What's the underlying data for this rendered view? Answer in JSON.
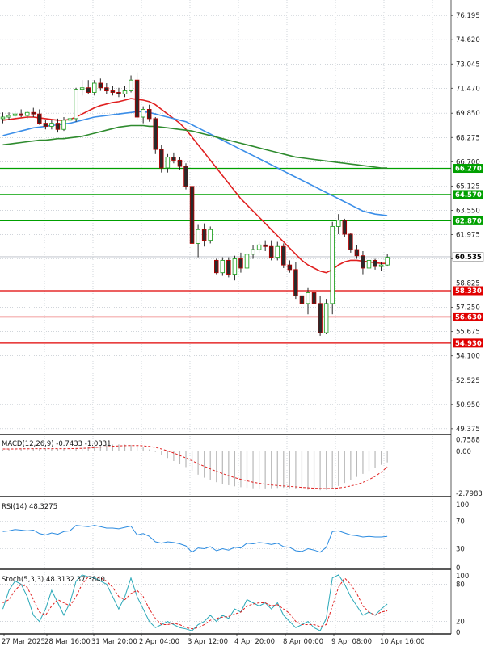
{
  "chart_data": {
    "type": "candlestick",
    "price_axis": {
      "ticks": [
        76.195,
        74.62,
        73.045,
        71.47,
        69.85,
        68.275,
        66.7,
        65.125,
        63.55,
        61.975,
        60.4,
        58.825,
        57.25,
        55.675,
        54.1,
        52.525,
        50.95,
        49.375
      ],
      "tick_labels": [
        "76.195",
        "74.620",
        "73.045",
        "71.470",
        "69.850",
        "68.275",
        "66.700",
        "65.125",
        "63.550",
        "61.975",
        "60.400",
        "58.825",
        "57.250",
        "55.675",
        "54.100",
        "52.525",
        "50.950",
        "49.375"
      ],
      "range": [
        49.0,
        77.2
      ]
    },
    "x_axis": {
      "labels": [
        "27 Mar 2025",
        "28 Mar 16:00",
        "31 Mar 20:00",
        "2 Apr 04:00",
        "3 Apr 12:00",
        "4 Apr 20:00",
        "8 Apr 00:00",
        "9 Apr 08:00",
        "10 Apr 16:00"
      ]
    },
    "current_price": {
      "value": 60.535,
      "label": "60.535",
      "color": "#ffffff"
    },
    "levels": [
      {
        "value": 66.27,
        "label": "66.270",
        "color": "#00a000"
      },
      {
        "value": 64.57,
        "label": "64.570",
        "color": "#00a000"
      },
      {
        "value": 62.87,
        "label": "62.870",
        "color": "#00a000"
      },
      {
        "value": 58.33,
        "label": "58.330",
        "color": "#e00000"
      },
      {
        "value": 56.63,
        "label": "56.630",
        "color": "#e00000"
      },
      {
        "value": 54.93,
        "label": "54.930",
        "color": "#e00000"
      }
    ],
    "candles": [
      {
        "o": 69.5,
        "h": 69.9,
        "l": 69.2,
        "c": 69.6
      },
      {
        "o": 69.6,
        "h": 69.9,
        "l": 69.4,
        "c": 69.7
      },
      {
        "o": 69.7,
        "h": 70.0,
        "l": 69.5,
        "c": 69.8
      },
      {
        "o": 69.8,
        "h": 70.1,
        "l": 69.6,
        "c": 69.7
      },
      {
        "o": 69.7,
        "h": 70.0,
        "l": 69.5,
        "c": 69.9
      },
      {
        "o": 69.9,
        "h": 70.2,
        "l": 69.6,
        "c": 69.8
      },
      {
        "o": 69.8,
        "h": 70.1,
        "l": 69.1,
        "c": 69.2
      },
      {
        "o": 69.2,
        "h": 69.4,
        "l": 68.8,
        "c": 69.0
      },
      {
        "o": 69.0,
        "h": 69.4,
        "l": 68.8,
        "c": 69.2
      },
      {
        "o": 69.2,
        "h": 69.5,
        "l": 68.6,
        "c": 68.8
      },
      {
        "o": 68.8,
        "h": 69.6,
        "l": 68.7,
        "c": 69.4
      },
      {
        "o": 69.4,
        "h": 69.8,
        "l": 69.1,
        "c": 69.5
      },
      {
        "o": 69.5,
        "h": 71.5,
        "l": 69.3,
        "c": 71.4
      },
      {
        "o": 71.4,
        "h": 72.0,
        "l": 71.0,
        "c": 71.5
      },
      {
        "o": 71.5,
        "h": 72.0,
        "l": 71.1,
        "c": 71.2
      },
      {
        "o": 71.2,
        "h": 72.0,
        "l": 71.0,
        "c": 71.8
      },
      {
        "o": 71.8,
        "h": 72.1,
        "l": 71.3,
        "c": 71.5
      },
      {
        "o": 71.5,
        "h": 71.8,
        "l": 71.1,
        "c": 71.3
      },
      {
        "o": 71.3,
        "h": 71.6,
        "l": 71.0,
        "c": 71.2
      },
      {
        "o": 71.2,
        "h": 71.5,
        "l": 70.9,
        "c": 71.1
      },
      {
        "o": 71.1,
        "h": 71.6,
        "l": 70.9,
        "c": 71.3
      },
      {
        "o": 71.3,
        "h": 72.3,
        "l": 71.2,
        "c": 72.0
      },
      {
        "o": 72.0,
        "h": 72.5,
        "l": 69.4,
        "c": 69.6
      },
      {
        "o": 69.6,
        "h": 70.3,
        "l": 69.2,
        "c": 70.1
      },
      {
        "o": 70.1,
        "h": 70.4,
        "l": 69.3,
        "c": 69.5
      },
      {
        "o": 69.5,
        "h": 69.6,
        "l": 67.2,
        "c": 67.5
      },
      {
        "o": 67.5,
        "h": 67.8,
        "l": 66.0,
        "c": 66.3
      },
      {
        "o": 66.3,
        "h": 67.2,
        "l": 66.0,
        "c": 67.0
      },
      {
        "o": 67.0,
        "h": 67.3,
        "l": 66.6,
        "c": 66.8
      },
      {
        "o": 66.8,
        "h": 67.0,
        "l": 66.2,
        "c": 66.4
      },
      {
        "o": 66.4,
        "h": 66.6,
        "l": 64.9,
        "c": 65.1
      },
      {
        "o": 65.1,
        "h": 65.3,
        "l": 61.0,
        "c": 61.4
      },
      {
        "o": 61.4,
        "h": 62.6,
        "l": 60.5,
        "c": 62.3
      },
      {
        "o": 62.3,
        "h": 62.7,
        "l": 61.2,
        "c": 61.6
      },
      {
        "o": 61.6,
        "h": 62.5,
        "l": 61.4,
        "c": 62.3
      },
      {
        "o": 60.3,
        "h": 60.4,
        "l": 59.4,
        "c": 59.5
      },
      {
        "o": 59.5,
        "h": 60.5,
        "l": 59.3,
        "c": 60.3
      },
      {
        "o": 60.3,
        "h": 60.5,
        "l": 59.2,
        "c": 59.4
      },
      {
        "o": 59.4,
        "h": 60.6,
        "l": 59.0,
        "c": 60.4
      },
      {
        "o": 60.4,
        "h": 60.8,
        "l": 59.5,
        "c": 59.8
      },
      {
        "o": 59.8,
        "h": 63.5,
        "l": 59.7,
        "c": 60.7
      },
      {
        "o": 60.7,
        "h": 61.3,
        "l": 60.4,
        "c": 61.0
      },
      {
        "o": 61.0,
        "h": 61.5,
        "l": 60.8,
        "c": 61.3
      },
      {
        "o": 61.3,
        "h": 61.6,
        "l": 60.9,
        "c": 61.2
      },
      {
        "o": 61.2,
        "h": 61.6,
        "l": 60.3,
        "c": 60.5
      },
      {
        "o": 60.5,
        "h": 61.5,
        "l": 60.3,
        "c": 61.2
      },
      {
        "o": 61.2,
        "h": 61.4,
        "l": 59.8,
        "c": 60.0
      },
      {
        "o": 60.0,
        "h": 60.3,
        "l": 59.5,
        "c": 59.7
      },
      {
        "o": 59.7,
        "h": 60.2,
        "l": 57.8,
        "c": 58.0
      },
      {
        "o": 58.0,
        "h": 58.3,
        "l": 57.0,
        "c": 57.5
      },
      {
        "o": 57.5,
        "h": 58.5,
        "l": 56.8,
        "c": 58.2
      },
      {
        "o": 58.2,
        "h": 58.5,
        "l": 57.2,
        "c": 57.5
      },
      {
        "o": 57.5,
        "h": 58.0,
        "l": 55.4,
        "c": 55.6
      },
      {
        "o": 55.6,
        "h": 57.8,
        "l": 55.5,
        "c": 57.5
      },
      {
        "o": 57.5,
        "h": 62.8,
        "l": 56.8,
        "c": 62.5
      },
      {
        "o": 62.5,
        "h": 63.3,
        "l": 62.0,
        "c": 62.9
      },
      {
        "o": 62.9,
        "h": 63.0,
        "l": 61.8,
        "c": 62.0
      },
      {
        "o": 62.0,
        "h": 62.1,
        "l": 60.8,
        "c": 61.0
      },
      {
        "o": 61.0,
        "h": 61.3,
        "l": 60.4,
        "c": 60.6
      },
      {
        "o": 60.6,
        "h": 60.9,
        "l": 59.4,
        "c": 59.8
      },
      {
        "o": 59.8,
        "h": 60.5,
        "l": 59.6,
        "c": 60.3
      },
      {
        "o": 60.3,
        "h": 60.4,
        "l": 59.7,
        "c": 59.9
      },
      {
        "o": 59.9,
        "h": 60.2,
        "l": 59.6,
        "c": 60.0
      },
      {
        "o": 60.0,
        "h": 60.7,
        "l": 59.9,
        "c": 60.5
      }
    ],
    "moving_averages": [
      {
        "color": "#e02020",
        "values": [
          69.4,
          69.45,
          69.5,
          69.55,
          69.6,
          69.6,
          69.55,
          69.5,
          69.45,
          69.4,
          69.4,
          69.45,
          69.6,
          69.8,
          70.0,
          70.2,
          70.35,
          70.45,
          70.55,
          70.6,
          70.7,
          70.8,
          70.75,
          70.7,
          70.6,
          70.4,
          70.1,
          69.8,
          69.5,
          69.2,
          68.8,
          68.3,
          67.8,
          67.3,
          66.8,
          66.3,
          65.8,
          65.3,
          64.8,
          64.3,
          63.9,
          63.5,
          63.1,
          62.7,
          62.3,
          61.9,
          61.5,
          61.1,
          60.7,
          60.3,
          60.0,
          59.8,
          59.6,
          59.5,
          59.7,
          60.0,
          60.2,
          60.3,
          60.3,
          60.25,
          60.2,
          60.15,
          60.1,
          60.1
        ]
      },
      {
        "color": "#3b8ee8",
        "values": [
          68.4,
          68.5,
          68.6,
          68.7,
          68.8,
          68.9,
          68.95,
          69.0,
          69.05,
          69.1,
          69.15,
          69.2,
          69.3,
          69.4,
          69.5,
          69.6,
          69.65,
          69.7,
          69.75,
          69.8,
          69.85,
          69.9,
          69.95,
          69.95,
          69.9,
          69.8,
          69.7,
          69.6,
          69.5,
          69.4,
          69.3,
          69.1,
          68.9,
          68.7,
          68.5,
          68.3,
          68.1,
          67.9,
          67.7,
          67.5,
          67.3,
          67.1,
          66.9,
          66.7,
          66.5,
          66.3,
          66.1,
          65.9,
          65.7,
          65.5,
          65.3,
          65.1,
          64.9,
          64.7,
          64.5,
          64.3,
          64.1,
          63.9,
          63.7,
          63.5,
          63.4,
          63.3,
          63.25,
          63.2
        ]
      },
      {
        "color": "#2e8b2e",
        "values": [
          67.8,
          67.85,
          67.9,
          67.95,
          68.0,
          68.05,
          68.1,
          68.1,
          68.15,
          68.2,
          68.2,
          68.25,
          68.3,
          68.35,
          68.45,
          68.55,
          68.65,
          68.75,
          68.85,
          68.95,
          69.0,
          69.05,
          69.05,
          69.05,
          69.0,
          69.0,
          68.95,
          68.9,
          68.85,
          68.8,
          68.75,
          68.7,
          68.6,
          68.5,
          68.4,
          68.3,
          68.2,
          68.1,
          68.0,
          67.9,
          67.8,
          67.7,
          67.6,
          67.5,
          67.4,
          67.3,
          67.2,
          67.1,
          67.0,
          66.95,
          66.9,
          66.85,
          66.8,
          66.75,
          66.7,
          66.65,
          66.6,
          66.55,
          66.5,
          66.45,
          66.4,
          66.35,
          66.3,
          66.3
        ]
      }
    ],
    "macd": {
      "label": "MACD(12,26,9) -0.7433 -1.0331",
      "ticks": [
        0.7588,
        0.0,
        -2.7983
      ],
      "tick_labels": [
        "0.7588",
        "0.00",
        "-2.7983"
      ],
      "range": [
        -3.0,
        0.95
      ],
      "hist": [
        0.1,
        0.12,
        0.15,
        0.17,
        0.18,
        0.2,
        0.2,
        0.18,
        0.17,
        0.15,
        0.15,
        0.16,
        0.2,
        0.25,
        0.3,
        0.35,
        0.4,
        0.42,
        0.44,
        0.45,
        0.44,
        0.42,
        0.35,
        0.25,
        0.12,
        -0.05,
        -0.25,
        -0.45,
        -0.65,
        -0.85,
        -1.05,
        -1.3,
        -1.55,
        -1.75,
        -1.9,
        -2.05,
        -2.15,
        -2.25,
        -2.32,
        -2.38,
        -2.42,
        -2.45,
        -2.46,
        -2.46,
        -2.45,
        -2.43,
        -2.42,
        -2.44,
        -2.48,
        -2.52,
        -2.55,
        -2.57,
        -2.58,
        -2.55,
        -2.45,
        -2.3,
        -2.1,
        -1.9,
        -1.7,
        -1.5,
        -1.3,
        -1.1,
        -0.9,
        -0.74
      ],
      "signal": [
        0.15,
        0.15,
        0.15,
        0.16,
        0.16,
        0.17,
        0.17,
        0.17,
        0.17,
        0.17,
        0.17,
        0.17,
        0.18,
        0.19,
        0.21,
        0.24,
        0.27,
        0.3,
        0.33,
        0.35,
        0.37,
        0.38,
        0.38,
        0.36,
        0.32,
        0.25,
        0.15,
        0.02,
        -0.12,
        -0.28,
        -0.45,
        -0.63,
        -0.82,
        -1.0,
        -1.17,
        -1.33,
        -1.48,
        -1.62,
        -1.75,
        -1.86,
        -1.96,
        -2.05,
        -2.12,
        -2.18,
        -2.23,
        -2.27,
        -2.3,
        -2.33,
        -2.36,
        -2.39,
        -2.42,
        -2.44,
        -2.46,
        -2.47,
        -2.46,
        -2.43,
        -2.38,
        -2.3,
        -2.2,
        -2.06,
        -1.88,
        -1.66,
        -1.38,
        -1.03
      ]
    },
    "rsi": {
      "label": "RSI(14) 48.3275",
      "ticks": [
        100,
        70,
        30,
        0
      ],
      "tick_labels": [
        "100",
        "70",
        "30",
        "0"
      ],
      "range": [
        0,
        100
      ],
      "values": [
        55,
        56,
        58,
        57,
        56,
        57,
        52,
        50,
        53,
        51,
        55,
        56,
        64,
        63,
        62,
        64,
        62,
        60,
        60,
        59,
        61,
        63,
        50,
        52,
        48,
        40,
        38,
        40,
        39,
        37,
        34,
        25,
        31,
        30,
        33,
        27,
        30,
        28,
        32,
        31,
        38,
        37,
        39,
        38,
        36,
        38,
        33,
        32,
        27,
        26,
        30,
        28,
        25,
        32,
        55,
        56,
        53,
        50,
        49,
        47,
        48,
        47,
        47,
        48
      ]
    },
    "stoch": {
      "label": "Stoch(5,3,3) 48.3132 37.3840",
      "ticks": [
        100,
        80,
        20,
        0
      ],
      "tick_labels": [
        "100",
        "80",
        "20",
        "0"
      ],
      "range": [
        0,
        100
      ],
      "k": [
        40,
        70,
        85,
        80,
        60,
        30,
        20,
        40,
        70,
        50,
        30,
        50,
        85,
        95,
        92,
        90,
        85,
        80,
        60,
        40,
        60,
        90,
        60,
        40,
        20,
        10,
        15,
        20,
        15,
        10,
        8,
        5,
        15,
        20,
        30,
        20,
        30,
        25,
        40,
        35,
        55,
        50,
        45,
        50,
        40,
        50,
        30,
        20,
        10,
        15,
        20,
        10,
        5,
        25,
        90,
        95,
        80,
        60,
        45,
        30,
        35,
        30,
        40,
        48
      ],
      "d": [
        50,
        55,
        70,
        80,
        75,
        55,
        35,
        30,
        45,
        55,
        50,
        45,
        60,
        80,
        92,
        92,
        90,
        85,
        75,
        60,
        55,
        65,
        70,
        60,
        40,
        25,
        15,
        15,
        17,
        15,
        10,
        8,
        10,
        15,
        22,
        25,
        27,
        28,
        32,
        35,
        45,
        48,
        50,
        50,
        45,
        47,
        40,
        33,
        20,
        15,
        15,
        15,
        12,
        15,
        45,
        75,
        90,
        80,
        65,
        45,
        35,
        30,
        35,
        37
      ]
    }
  }
}
